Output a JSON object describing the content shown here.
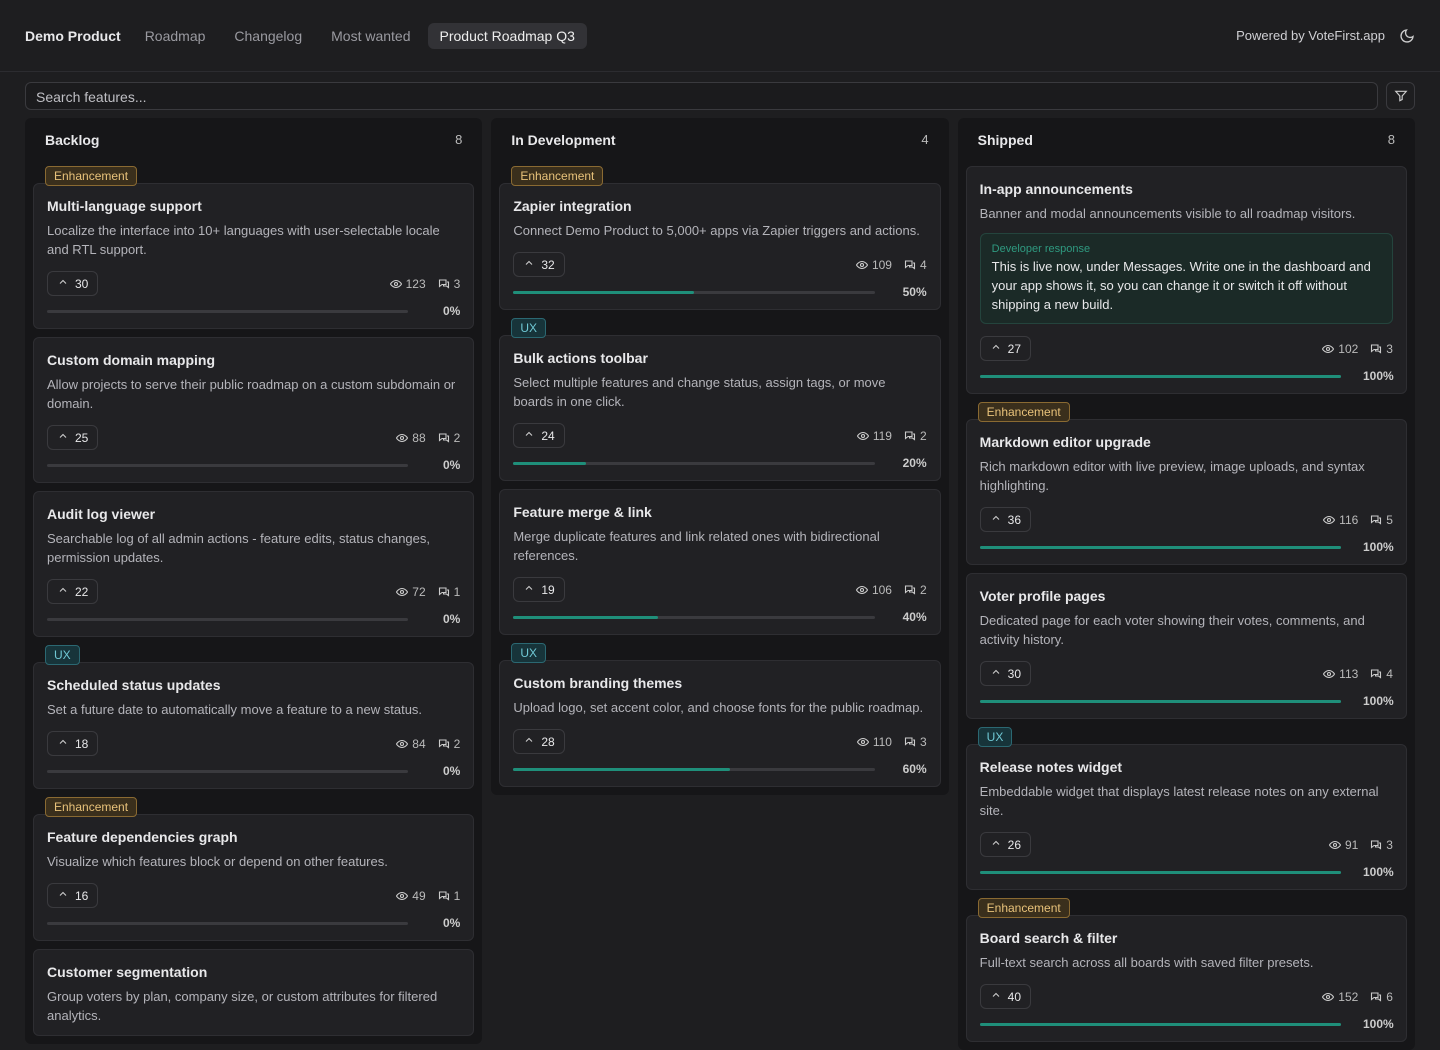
{
  "nav": {
    "brand": "Demo Product",
    "tabs": [
      "Roadmap",
      "Changelog",
      "Most wanted",
      "Product Roadmap Q3"
    ],
    "active_tab": 3,
    "powered_by": "Powered by VoteFirst.app"
  },
  "search": {
    "placeholder": "Search features..."
  },
  "columns": [
    {
      "title": "Backlog",
      "count": 8,
      "cards": [
        {
          "tag": "Enhancement",
          "title": "Multi-language support",
          "description": "Localize the interface into 10+ languages with user-selectable locale and RTL support.",
          "votes": 30,
          "views": 123,
          "comments": 3,
          "progress": 0,
          "progress_label": "0%"
        },
        {
          "title": "Custom domain mapping",
          "description": "Allow projects to serve their public roadmap on a custom subdomain or domain.",
          "votes": 25,
          "views": 88,
          "comments": 2,
          "progress": 0,
          "progress_label": "0%"
        },
        {
          "title": "Audit log viewer",
          "description": "Searchable log of all admin actions - feature edits, status changes, permission updates.",
          "votes": 22,
          "views": 72,
          "comments": 1,
          "progress": 0,
          "progress_label": "0%"
        },
        {
          "tag": "UX",
          "title": "Scheduled status updates",
          "description": "Set a future date to automatically move a feature to a new status.",
          "votes": 18,
          "views": 84,
          "comments": 2,
          "progress": 0,
          "progress_label": "0%"
        },
        {
          "tag": "Enhancement",
          "title": "Feature dependencies graph",
          "description": "Visualize which features block or depend on other features.",
          "votes": 16,
          "views": 49,
          "comments": 1,
          "progress": 0,
          "progress_label": "0%"
        },
        {
          "title": "Customer segmentation",
          "description": "Group voters by plan, company size, or custom attributes for filtered analytics."
        }
      ]
    },
    {
      "title": "In Development",
      "count": 4,
      "cards": [
        {
          "tag": "Enhancement",
          "title": "Zapier integration",
          "description": "Connect Demo Product to 5,000+ apps via Zapier triggers and actions.",
          "votes": 32,
          "views": 109,
          "comments": 4,
          "progress": 50,
          "progress_label": "50%"
        },
        {
          "tag": "UX",
          "title": "Bulk actions toolbar",
          "description": "Select multiple features and change status, assign tags, or move boards in one click.",
          "votes": 24,
          "views": 119,
          "comments": 2,
          "progress": 20,
          "progress_label": "20%"
        },
        {
          "title": "Feature merge & link",
          "description": "Merge duplicate features and link related ones with bidirectional references.",
          "votes": 19,
          "views": 106,
          "comments": 2,
          "progress": 40,
          "progress_label": "40%"
        },
        {
          "tag": "UX",
          "title": "Custom branding themes",
          "description": "Upload logo, set accent color, and choose fonts for the public roadmap.",
          "votes": 28,
          "views": 110,
          "comments": 3,
          "progress": 60,
          "progress_label": "60%"
        }
      ]
    },
    {
      "title": "Shipped",
      "count": 8,
      "cards": [
        {
          "title": "In-app announcements",
          "description": "Banner and modal announcements visible to all roadmap visitors.",
          "response": {
            "label": "Developer response",
            "text": "This is live now, under Messages. Write one in the dashboard and your app shows it, so you can change it or switch it off without shipping a new build."
          },
          "votes": 27,
          "views": 102,
          "comments": 3,
          "progress": 100,
          "progress_label": "100%"
        },
        {
          "tag": "Enhancement",
          "title": "Markdown editor upgrade",
          "description": "Rich markdown editor with live preview, image uploads, and syntax highlighting.",
          "votes": 36,
          "views": 116,
          "comments": 5,
          "progress": 100,
          "progress_label": "100%"
        },
        {
          "title": "Voter profile pages",
          "description": "Dedicated page for each voter showing their votes, comments, and activity history.",
          "votes": 30,
          "views": 113,
          "comments": 4,
          "progress": 100,
          "progress_label": "100%"
        },
        {
          "tag": "UX",
          "title": "Release notes widget",
          "description": "Embeddable widget that displays latest release notes on any external site.",
          "votes": 26,
          "views": 91,
          "comments": 3,
          "progress": 100,
          "progress_label": "100%"
        },
        {
          "tag": "Enhancement",
          "title": "Board search & filter",
          "description": "Full-text search across all boards with saved filter presets.",
          "votes": 40,
          "views": 152,
          "comments": 6,
          "progress": 100,
          "progress_label": "100%"
        }
      ]
    }
  ]
}
